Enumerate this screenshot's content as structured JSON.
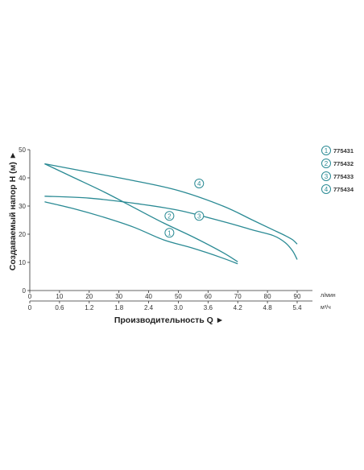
{
  "chart_data": {
    "type": "line",
    "ylabel": "Создаваемый напор H (м) ►",
    "xlabel": "Производительность Q ►",
    "x_unit_primary": "л/мин",
    "x_unit_secondary": "м³/ч",
    "xlim": [
      0,
      95
    ],
    "ylim": [
      0,
      50
    ],
    "x_ticks": [
      "0",
      "10",
      "20",
      "30",
      "40",
      "50",
      "60",
      "70",
      "80",
      "90"
    ],
    "x_tick_values": [
      0,
      10,
      20,
      30,
      40,
      50,
      60,
      70,
      80,
      90
    ],
    "x2_ticks": [
      "0",
      "0.6",
      "1.2",
      "1.8",
      "2.4",
      "3.0",
      "3.6",
      "4.2",
      "4.8",
      "5.4"
    ],
    "y_ticks": [
      "0",
      "10",
      "20",
      "30",
      "40",
      "50"
    ],
    "y_tick_values": [
      0,
      10,
      20,
      30,
      40,
      50
    ],
    "line_color": "#2a8a94",
    "series": [
      {
        "name": "775431",
        "marker": "1",
        "marker_at": [
          47,
          20.5
        ],
        "points": [
          [
            5,
            31.5
          ],
          [
            15,
            29
          ],
          [
            25,
            26
          ],
          [
            35,
            22.5
          ],
          [
            45,
            18
          ],
          [
            55,
            15
          ],
          [
            65,
            11.5
          ],
          [
            70,
            9.5
          ]
        ]
      },
      {
        "name": "775432",
        "marker": "2",
        "marker_at": [
          47,
          26.5
        ],
        "points": [
          [
            5,
            45
          ],
          [
            15,
            40
          ],
          [
            25,
            35
          ],
          [
            35,
            29.5
          ],
          [
            45,
            24
          ],
          [
            55,
            19
          ],
          [
            65,
            13.5
          ],
          [
            70,
            10.2
          ]
        ]
      },
      {
        "name": "775433",
        "marker": "3",
        "marker_at": [
          57,
          26.5
        ],
        "points": [
          [
            5,
            33.5
          ],
          [
            20,
            32.8
          ],
          [
            35,
            31
          ],
          [
            50,
            28.5
          ],
          [
            65,
            24.5
          ],
          [
            75,
            21.5
          ],
          [
            82,
            19.5
          ],
          [
            86,
            17
          ],
          [
            88.5,
            14
          ],
          [
            90,
            11
          ]
        ]
      },
      {
        "name": "775434",
        "marker": "4",
        "marker_at": [
          57,
          38
        ],
        "points": [
          [
            5,
            45
          ],
          [
            20,
            42
          ],
          [
            35,
            39
          ],
          [
            50,
            35.5
          ],
          [
            65,
            30
          ],
          [
            75,
            25
          ],
          [
            82,
            21.5
          ],
          [
            86,
            19.5
          ],
          [
            88.5,
            18
          ],
          [
            90,
            16.5
          ]
        ]
      }
    ],
    "legend_position": "right",
    "grid": false
  }
}
